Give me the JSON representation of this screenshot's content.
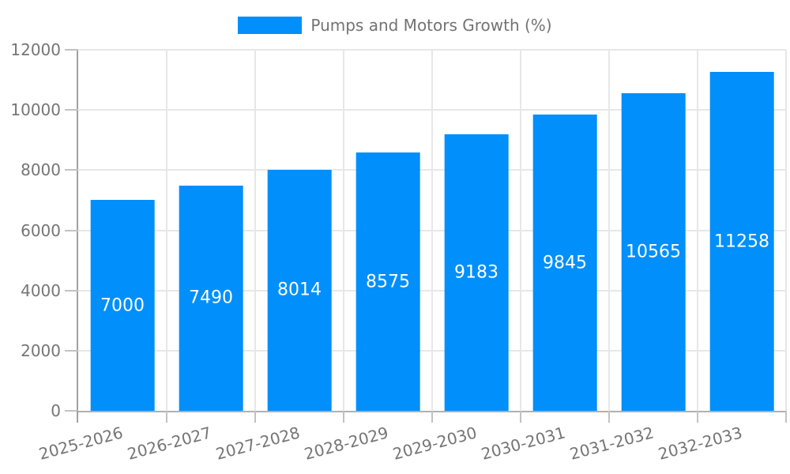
{
  "chart_data": {
    "type": "bar",
    "title": "",
    "legend_label": "Pumps and Motors Growth (%)",
    "legend_position": "top",
    "series_name": "Pumps and Motors Growth (%)",
    "categories": [
      "2025-2026",
      "2026-2027",
      "2027-2028",
      "2028-2029",
      "2029-2030",
      "2030-2031",
      "2031-2032",
      "2032-2033"
    ],
    "values": [
      7000,
      7490,
      8014,
      8575,
      9183,
      9845,
      10565,
      11258
    ],
    "xlabel": "",
    "ylabel": "",
    "ylim": [
      0,
      12000
    ],
    "y_ticks": [
      0,
      2000,
      4000,
      6000,
      8000,
      10000,
      12000
    ],
    "x_tick_rotation_deg": -15,
    "grid": true,
    "data_labels_inside_bars": true,
    "colors": {
      "bar": "#008FFB",
      "bar_label": "#FFFFFF",
      "axis_text": "#757575",
      "legend_text": "#737373",
      "grid_line": "#E7E7E7",
      "y_axis_line": "#A0A0A0",
      "x_axis_line": "#B0B0B0",
      "tick": "#C2C2C2",
      "background": "#FFFFFF"
    }
  }
}
